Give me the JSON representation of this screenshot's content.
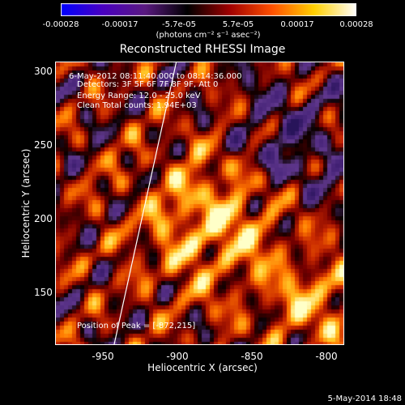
{
  "colorbar": {
    "ticks": [
      "-0.00028",
      "-0.00017",
      "-5.7e-05",
      "5.7e-05",
      "0.00017",
      "0.00028"
    ],
    "unit": "(photons cm⁻² s⁻¹ asec⁻²)",
    "colors": [
      "#0000ff",
      "#4a00c0",
      "#5a1a80",
      "#000000",
      "#a00000",
      "#ff5000",
      "#ffd000",
      "#ffffff"
    ]
  },
  "chart_data": {
    "type": "heatmap",
    "title": "Reconstructed RHESSI Image",
    "xlabel": "Heliocentric X (arcsec)",
    "ylabel": "Heliocentric Y (arcsec)",
    "xlim": [
      -977,
      -787
    ],
    "ylim": [
      112,
      308
    ],
    "xticks": [
      "-950",
      "-900",
      "-850",
      "-800"
    ],
    "xtick_values": [
      -950,
      -900,
      -850,
      -800
    ],
    "yticks": [
      "300",
      "250",
      "200",
      "150"
    ],
    "ytick_values": [
      300,
      250,
      200,
      150
    ],
    "clim": [
      -0.00028,
      0.00028
    ],
    "annotations": [
      "6-May-2012 08:11:40.000 to 08:14:36.000",
      "Detectors: 3F 5F 6F 7F 8F 9F, Att 0",
      "Energy Range: 12.0 - 25.0 keV",
      "Clean    Total counts: 1.94E+03"
    ],
    "peak_label": "Position of Peak = [-872,215]",
    "peak": [
      -872,
      215
    ]
  },
  "timestamp": "5-May-2014 18:48"
}
